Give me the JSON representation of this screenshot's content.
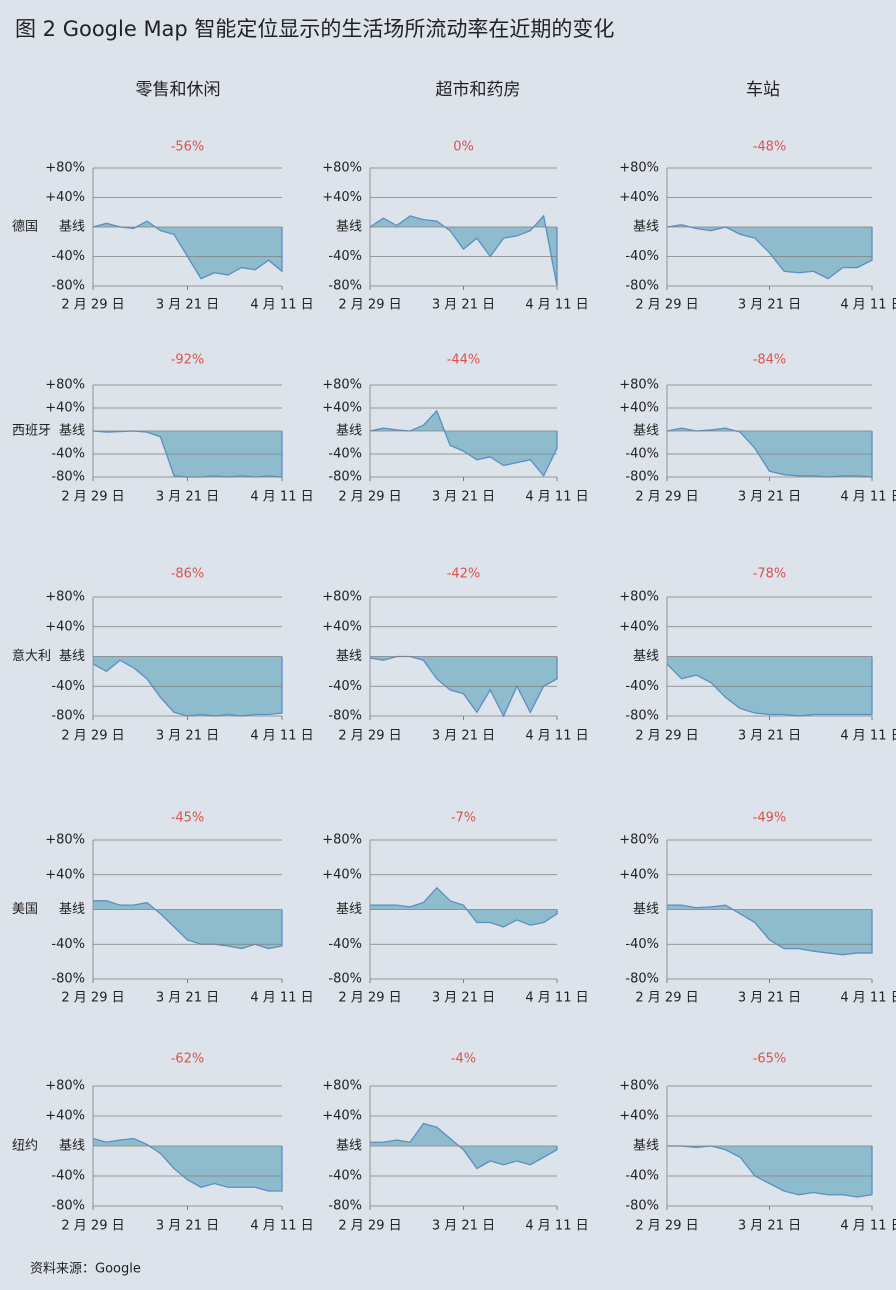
{
  "title": "图 2  Google Map 智能定位显示的生活场所流动率在近期的变化",
  "column_headers": [
    "零售和休闲",
    "超市和药房",
    "车站"
  ],
  "row_labels": [
    "德国",
    "西班牙",
    "意大利",
    "美国",
    "纽约"
  ],
  "source": "资料来源：Google",
  "chart_data": [
    {
      "type": "area",
      "title": "-56%",
      "categories": [
        "2 月 29 日",
        null,
        null,
        null,
        null,
        null,
        null,
        "3 月 21 日",
        null,
        null,
        null,
        null,
        null,
        null,
        "4 月 11 日"
      ],
      "values": [
        0,
        5,
        0,
        -2,
        8,
        -5,
        -10,
        -40,
        -70,
        -62,
        -65,
        -55,
        -58,
        -45,
        -60
      ],
      "color": "#8fbccd",
      "line_color": "#5b8ec4",
      "ylim": [
        -80,
        80
      ],
      "yticks": [
        {
          "value": 80,
          "label": "+80%"
        },
        {
          "value": 40,
          "label": "+40%"
        },
        {
          "value": 0,
          "label": "基线"
        },
        {
          "value": -40,
          "label": "-40%"
        },
        {
          "value": -80,
          "label": "-80%"
        }
      ],
      "grid": true
    },
    {
      "type": "area",
      "title": "0%",
      "categories": [
        "2 月 29 日",
        null,
        null,
        null,
        null,
        null,
        null,
        "3 月 21 日",
        null,
        null,
        null,
        null,
        null,
        null,
        "4 月 11 日"
      ],
      "values": [
        0,
        12,
        2,
        15,
        10,
        8,
        -5,
        -30,
        -15,
        -40,
        -15,
        -12,
        -5,
        15,
        -80
      ],
      "color": "#8fbccd",
      "line_color": "#5b8ec4",
      "ylim": [
        -80,
        80
      ],
      "yticks": [
        {
          "value": 80,
          "label": "+80%"
        },
        {
          "value": 40,
          "label": "+40%"
        },
        {
          "value": 0,
          "label": "基线"
        },
        {
          "value": -40,
          "label": "-40%"
        },
        {
          "value": -80,
          "label": "-80%"
        }
      ],
      "grid": true
    },
    {
      "type": "area",
      "title": "-48%",
      "categories": [
        "2 月 29 日",
        null,
        null,
        null,
        null,
        null,
        null,
        "3 月 21 日",
        null,
        null,
        null,
        null,
        null,
        null,
        "4 月 11 日"
      ],
      "values": [
        0,
        3,
        -2,
        -5,
        0,
        -10,
        -15,
        -35,
        -60,
        -62,
        -60,
        -70,
        -55,
        -55,
        -45
      ],
      "color": "#8fbccd",
      "line_color": "#5b8ec4",
      "ylim": [
        -80,
        80
      ],
      "yticks": [
        {
          "value": 80,
          "label": "+80%"
        },
        {
          "value": 40,
          "label": "+40%"
        },
        {
          "value": 0,
          "label": "基线"
        },
        {
          "value": -40,
          "label": "-40%"
        },
        {
          "value": -80,
          "label": "-80%"
        }
      ],
      "grid": true
    },
    {
      "type": "area",
      "title": "-92%",
      "categories": [
        "2 月 29 日",
        null,
        null,
        null,
        null,
        null,
        null,
        "3 月 21 日",
        null,
        null,
        null,
        null,
        null,
        null,
        "4 月 11 日"
      ],
      "values": [
        0,
        -2,
        -1,
        0,
        -2,
        -10,
        -78,
        -80,
        -80,
        -78,
        -80,
        -78,
        -80,
        -78,
        -80
      ],
      "color": "#8fbccd",
      "line_color": "#5b8ec4",
      "ylim": [
        -80,
        80
      ],
      "yticks": [
        {
          "value": 80,
          "label": "+80%"
        },
        {
          "value": 40,
          "label": "+40%"
        },
        {
          "value": 0,
          "label": "基线"
        },
        {
          "value": -40,
          "label": "-40%"
        },
        {
          "value": -80,
          "label": "-80%"
        }
      ],
      "grid": true
    },
    {
      "type": "area",
      "title": "-44%",
      "categories": [
        "2 月 29 日",
        null,
        null,
        null,
        null,
        null,
        null,
        "3 月 21 日",
        null,
        null,
        null,
        null,
        null,
        null,
        "4 月 11 日"
      ],
      "values": [
        0,
        5,
        2,
        0,
        10,
        35,
        -25,
        -35,
        -50,
        -45,
        -60,
        -55,
        -50,
        -78,
        -30
      ],
      "color": "#8fbccd",
      "line_color": "#5b8ec4",
      "ylim": [
        -80,
        80
      ],
      "yticks": [
        {
          "value": 80,
          "label": "+80%"
        },
        {
          "value": 40,
          "label": "+40%"
        },
        {
          "value": 0,
          "label": "基线"
        },
        {
          "value": -40,
          "label": "-40%"
        },
        {
          "value": -80,
          "label": "-80%"
        }
      ],
      "grid": true
    },
    {
      "type": "area",
      "title": "-84%",
      "categories": [
        "2 月 29 日",
        null,
        null,
        null,
        null,
        null,
        null,
        "3 月 21 日",
        null,
        null,
        null,
        null,
        null,
        null,
        "4 月 11 日"
      ],
      "values": [
        0,
        5,
        0,
        2,
        5,
        -2,
        -30,
        -70,
        -76,
        -78,
        -78,
        -80,
        -78,
        -78,
        -80
      ],
      "color": "#8fbccd",
      "line_color": "#5b8ec4",
      "ylim": [
        -80,
        80
      ],
      "yticks": [
        {
          "value": 80,
          "label": "+80%"
        },
        {
          "value": 40,
          "label": "+40%"
        },
        {
          "value": 0,
          "label": "基线"
        },
        {
          "value": -40,
          "label": "-40%"
        },
        {
          "value": -80,
          "label": "-80%"
        }
      ],
      "grid": true
    },
    {
      "type": "area",
      "title": "-86%",
      "categories": [
        "2 月 29 日",
        null,
        null,
        null,
        null,
        null,
        null,
        "3 月 21 日",
        null,
        null,
        null,
        null,
        null,
        null,
        "4 月 11 日"
      ],
      "values": [
        -10,
        -20,
        -5,
        -15,
        -30,
        -55,
        -75,
        -80,
        -78,
        -80,
        -78,
        -80,
        -78,
        -78,
        -76
      ],
      "color": "#8fbccd",
      "line_color": "#5b8ec4",
      "ylim": [
        -80,
        80
      ],
      "yticks": [
        {
          "value": 80,
          "label": "+80%"
        },
        {
          "value": 40,
          "label": "+40%"
        },
        {
          "value": 0,
          "label": "基线"
        },
        {
          "value": -40,
          "label": "-40%"
        },
        {
          "value": -80,
          "label": "-80%"
        }
      ],
      "grid": true
    },
    {
      "type": "area",
      "title": "-42%",
      "categories": [
        "2 月 29 日",
        null,
        null,
        null,
        null,
        null,
        null,
        "3 月 21 日",
        null,
        null,
        null,
        null,
        null,
        null,
        "4 月 11 日"
      ],
      "values": [
        -2,
        -5,
        0,
        0,
        -5,
        -30,
        -45,
        -50,
        -75,
        -45,
        -80,
        -40,
        -75,
        -40,
        -30
      ],
      "color": "#8fbccd",
      "line_color": "#5b8ec4",
      "ylim": [
        -80,
        80
      ],
      "yticks": [
        {
          "value": 80,
          "label": "+80%"
        },
        {
          "value": 40,
          "label": "+40%"
        },
        {
          "value": 0,
          "label": "基线"
        },
        {
          "value": -40,
          "label": "-40%"
        },
        {
          "value": -80,
          "label": "-80%"
        }
      ],
      "grid": true
    },
    {
      "type": "area",
      "title": "-78%",
      "categories": [
        "2 月 29 日",
        null,
        null,
        null,
        null,
        null,
        null,
        "3 月 21 日",
        null,
        null,
        null,
        null,
        null,
        null,
        "4 月 11 日"
      ],
      "values": [
        -10,
        -30,
        -25,
        -35,
        -55,
        -70,
        -76,
        -78,
        -78,
        -80,
        -78,
        -78,
        -78,
        -78,
        -78
      ],
      "color": "#8fbccd",
      "line_color": "#5b8ec4",
      "ylim": [
        -80,
        80
      ],
      "yticks": [
        {
          "value": 80,
          "label": "+80%"
        },
        {
          "value": 40,
          "label": "+40%"
        },
        {
          "value": 0,
          "label": "基线"
        },
        {
          "value": -40,
          "label": "-40%"
        },
        {
          "value": -80,
          "label": "-80%"
        }
      ],
      "grid": true
    },
    {
      "type": "area",
      "title": "-45%",
      "categories": [
        "2 月 29 日",
        null,
        null,
        null,
        null,
        null,
        null,
        "3 月 21 日",
        null,
        null,
        null,
        null,
        null,
        null,
        "4 月 11 日"
      ],
      "values": [
        10,
        10,
        5,
        5,
        8,
        -5,
        -20,
        -35,
        -40,
        -40,
        -42,
        -45,
        -40,
        -45,
        -42
      ],
      "color": "#8fbccd",
      "line_color": "#5b8ec4",
      "ylim": [
        -80,
        80
      ],
      "yticks": [
        {
          "value": 80,
          "label": "+80%"
        },
        {
          "value": 40,
          "label": "+40%"
        },
        {
          "value": 0,
          "label": "基线"
        },
        {
          "value": -40,
          "label": "-40%"
        },
        {
          "value": -80,
          "label": "-80%"
        }
      ],
      "grid": true
    },
    {
      "type": "area",
      "title": "-7%",
      "categories": [
        "2 月 29 日",
        null,
        null,
        null,
        null,
        null,
        null,
        "3 月 21 日",
        null,
        null,
        null,
        null,
        null,
        null,
        "4 月 11 日"
      ],
      "values": [
        5,
        5,
        5,
        3,
        8,
        25,
        10,
        5,
        -15,
        -15,
        -20,
        -12,
        -18,
        -15,
        -5
      ],
      "color": "#8fbccd",
      "line_color": "#5b8ec4",
      "ylim": [
        -80,
        80
      ],
      "yticks": [
        {
          "value": 80,
          "label": "+80%"
        },
        {
          "value": 40,
          "label": "+40%"
        },
        {
          "value": 0,
          "label": "基线"
        },
        {
          "value": -40,
          "label": "-40%"
        },
        {
          "value": -80,
          "label": "-80%"
        }
      ],
      "grid": true
    },
    {
      "type": "area",
      "title": "-49%",
      "categories": [
        "2 月 29 日",
        null,
        null,
        null,
        null,
        null,
        null,
        "3 月 21 日",
        null,
        null,
        null,
        null,
        null,
        null,
        "4 月 11 日"
      ],
      "values": [
        5,
        5,
        2,
        3,
        5,
        -5,
        -15,
        -35,
        -45,
        -45,
        -48,
        -50,
        -52,
        -50,
        -50
      ],
      "color": "#8fbccd",
      "line_color": "#5b8ec4",
      "ylim": [
        -80,
        80
      ],
      "yticks": [
        {
          "value": 80,
          "label": "+80%"
        },
        {
          "value": 40,
          "label": "+40%"
        },
        {
          "value": 0,
          "label": "基线"
        },
        {
          "value": -40,
          "label": "-40%"
        },
        {
          "value": -80,
          "label": "-80%"
        }
      ],
      "grid": true
    },
    {
      "type": "area",
      "title": "-62%",
      "categories": [
        "2 月 29 日",
        null,
        null,
        null,
        null,
        null,
        null,
        "3 月 21 日",
        null,
        null,
        null,
        null,
        null,
        null,
        "4 月 11 日"
      ],
      "values": [
        10,
        5,
        8,
        10,
        2,
        -10,
        -30,
        -45,
        -55,
        -50,
        -55,
        -55,
        -55,
        -60,
        -60
      ],
      "color": "#8fbccd",
      "line_color": "#5b8ec4",
      "ylim": [
        -80,
        80
      ],
      "yticks": [
        {
          "value": 80,
          "label": "+80%"
        },
        {
          "value": 40,
          "label": "+40%"
        },
        {
          "value": 0,
          "label": "基线"
        },
        {
          "value": -40,
          "label": "-40%"
        },
        {
          "value": -80,
          "label": "-80%"
        }
      ],
      "grid": true
    },
    {
      "type": "area",
      "title": "-4%",
      "categories": [
        "2 月 29 日",
        null,
        null,
        null,
        null,
        null,
        null,
        "3 月 21 日",
        null,
        null,
        null,
        null,
        null,
        null,
        "4 月 11 日"
      ],
      "values": [
        5,
        5,
        8,
        5,
        30,
        25,
        10,
        -5,
        -30,
        -20,
        -25,
        -20,
        -25,
        -15,
        -5
      ],
      "color": "#8fbccd",
      "line_color": "#5b8ec4",
      "ylim": [
        -80,
        80
      ],
      "yticks": [
        {
          "value": 80,
          "label": "+80%"
        },
        {
          "value": 40,
          "label": "+40%"
        },
        {
          "value": 0,
          "label": "基线"
        },
        {
          "value": -40,
          "label": "-40%"
        },
        {
          "value": -80,
          "label": "-80%"
        }
      ],
      "grid": true
    },
    {
      "type": "area",
      "title": "-65%",
      "categories": [
        "2 月 29 日",
        null,
        null,
        null,
        null,
        null,
        null,
        "3 月 21 日",
        null,
        null,
        null,
        null,
        null,
        null,
        "4 月 11 日"
      ],
      "values": [
        0,
        0,
        -2,
        0,
        -5,
        -15,
        -40,
        -50,
        -60,
        -65,
        -62,
        -65,
        -65,
        -68,
        -65
      ],
      "color": "#8fbccd",
      "line_color": "#5b8ec4",
      "ylim": [
        -80,
        80
      ],
      "yticks": [
        {
          "value": 80,
          "label": "+80%"
        },
        {
          "value": 40,
          "label": "+40%"
        },
        {
          "value": 0,
          "label": "基线"
        },
        {
          "value": -40,
          "label": "-40%"
        },
        {
          "value": -80,
          "label": "-80%"
        }
      ],
      "grid": true
    }
  ]
}
